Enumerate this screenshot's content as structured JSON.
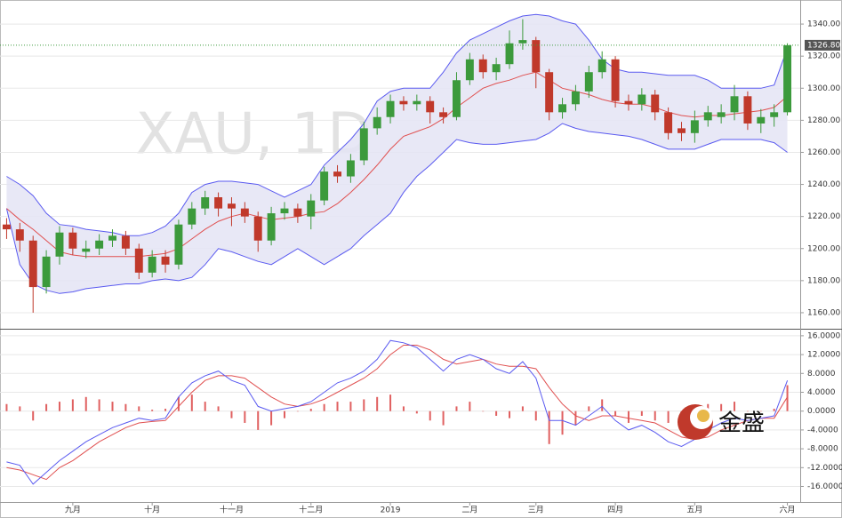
{
  "chart_data": [
    {
      "type": "candlestick",
      "watermark": "XAU, 1D",
      "categories": [
        null,
        null,
        null,
        null,
        null,
        "九月",
        null,
        null,
        null,
        null,
        null,
        "十月",
        null,
        null,
        null,
        null,
        null,
        "十一月",
        null,
        null,
        null,
        null,
        null,
        "十二月",
        null,
        null,
        null,
        null,
        null,
        "2019",
        null,
        null,
        null,
        null,
        null,
        "二月",
        null,
        null,
        null,
        null,
        "三月",
        null,
        null,
        null,
        null,
        null,
        "四月",
        null,
        null,
        null,
        null,
        null,
        "五月",
        null,
        null,
        null,
        null,
        null,
        null,
        "六月"
      ],
      "open": [
        1215,
        1212,
        1205,
        1176,
        1195,
        1210,
        1198,
        1200,
        1205,
        1208,
        1200,
        1185,
        1195,
        1190,
        1215,
        1225,
        1232,
        1228,
        1225,
        1220,
        1205,
        1222,
        1225,
        1220,
        1230,
        1248,
        1245,
        1255,
        1275,
        1282,
        1292,
        1290,
        1292,
        1285,
        1282,
        1305,
        1318,
        1310,
        1315,
        1328,
        1330,
        1310,
        1285,
        1290,
        1298,
        1310,
        1318,
        1292,
        1290,
        1296,
        1285,
        1275,
        1272,
        1280,
        1282,
        1285,
        1295,
        1278,
        1282,
        1285
      ],
      "high": [
        1219,
        1216,
        1208,
        1199,
        1214,
        1213,
        1205,
        1209,
        1212,
        1211,
        1203,
        1199,
        1199,
        1218,
        1229,
        1236,
        1235,
        1232,
        1229,
        1223,
        1226,
        1229,
        1228,
        1234,
        1251,
        1252,
        1259,
        1279,
        1288,
        1296,
        1295,
        1296,
        1295,
        1288,
        1310,
        1322,
        1321,
        1319,
        1336,
        1343,
        1332,
        1312,
        1294,
        1302,
        1314,
        1323,
        1320,
        1296,
        1300,
        1299,
        1288,
        1279,
        1286,
        1289,
        1290,
        1302,
        1298,
        1287,
        1290,
        1328
      ],
      "low": [
        1206,
        1198,
        1160,
        1172,
        1190,
        1196,
        1194,
        1196,
        1201,
        1196,
        1181,
        1182,
        1185,
        1187,
        1212,
        1221,
        1220,
        1214,
        1216,
        1198,
        1202,
        1218,
        1216,
        1212,
        1227,
        1241,
        1241,
        1252,
        1271,
        1278,
        1286,
        1286,
        1278,
        1278,
        1280,
        1302,
        1306,
        1305,
        1312,
        1324,
        1300,
        1280,
        1281,
        1286,
        1294,
        1306,
        1288,
        1286,
        1286,
        1280,
        1268,
        1267,
        1266,
        1276,
        1278,
        1280,
        1274,
        1272,
        1276,
        1283
      ],
      "close": [
        1212,
        1205,
        1176,
        1195,
        1210,
        1200,
        1200,
        1205,
        1208,
        1200,
        1185,
        1195,
        1190,
        1215,
        1225,
        1232,
        1225,
        1225,
        1220,
        1205,
        1222,
        1225,
        1220,
        1230,
        1248,
        1245,
        1255,
        1275,
        1282,
        1292,
        1290,
        1292,
        1285,
        1282,
        1305,
        1318,
        1310,
        1315,
        1328,
        1330,
        1310,
        1285,
        1290,
        1298,
        1310,
        1318,
        1292,
        1290,
        1296,
        1285,
        1272,
        1272,
        1280,
        1285,
        1285,
        1295,
        1278,
        1282,
        1285,
        1326.8
      ],
      "up_color": "#3c9a3c",
      "down_color": "#c0392b",
      "upper": [
        1245,
        1240,
        1233,
        1222,
        1215,
        1214,
        1212,
        1211,
        1210,
        1208,
        1208,
        1210,
        1214,
        1222,
        1235,
        1240,
        1242,
        1242,
        1241,
        1240,
        1236,
        1232,
        1236,
        1240,
        1252,
        1260,
        1268,
        1278,
        1292,
        1298,
        1300,
        1300,
        1300,
        1310,
        1322,
        1330,
        1334,
        1338,
        1342,
        1345,
        1346,
        1345,
        1342,
        1340,
        1330,
        1318,
        1312,
        1310,
        1310,
        1309,
        1308,
        1308,
        1308,
        1305,
        1300,
        1300,
        1300,
        1300,
        1302,
        1325
      ],
      "middle": [
        1225,
        1218,
        1212,
        1205,
        1198,
        1196,
        1195,
        1195,
        1195,
        1195,
        1195,
        1196,
        1197,
        1200,
        1206,
        1212,
        1217,
        1220,
        1222,
        1220,
        1218,
        1219,
        1220,
        1222,
        1223,
        1228,
        1235,
        1243,
        1252,
        1262,
        1270,
        1273,
        1276,
        1281,
        1288,
        1294,
        1300,
        1303,
        1305,
        1308,
        1310,
        1305,
        1300,
        1298,
        1296,
        1293,
        1291,
        1290,
        1290,
        1288,
        1285,
        1283,
        1282,
        1283,
        1283,
        1284,
        1285,
        1286,
        1288,
        1295
      ],
      "lower": [
        1225,
        1190,
        1178,
        1174,
        1172,
        1173,
        1175,
        1176,
        1177,
        1178,
        1178,
        1180,
        1181,
        1180,
        1182,
        1190,
        1200,
        1198,
        1195,
        1192,
        1190,
        1195,
        1200,
        1195,
        1190,
        1195,
        1200,
        1208,
        1215,
        1222,
        1235,
        1245,
        1252,
        1260,
        1268,
        1266,
        1265,
        1265,
        1266,
        1267,
        1268,
        1272,
        1278,
        1275,
        1273,
        1272,
        1271,
        1270,
        1268,
        1265,
        1262,
        1262,
        1262,
        1265,
        1268,
        1268,
        1268,
        1268,
        1266,
        1260
      ],
      "band_color": "#5a5af0",
      "band_fill": "#e4e4f4",
      "middle_color": "#e05050",
      "last_price": {
        "value": 1326.8,
        "label": "1326.80"
      },
      "ylim": [
        1150,
        1355
      ],
      "yticks": [
        {
          "value": 1160,
          "label": "1160.00"
        },
        {
          "value": 1180,
          "label": "1180.00"
        },
        {
          "value": 1200,
          "label": "1200.00"
        },
        {
          "value": 1220,
          "label": "1220.00"
        },
        {
          "value": 1240,
          "label": "1240.00"
        },
        {
          "value": 1260,
          "label": "1260.00"
        },
        {
          "value": 1280,
          "label": "1280.00"
        },
        {
          "value": 1300,
          "label": "1300.00"
        },
        {
          "value": 1320,
          "label": "1320.00"
        },
        {
          "value": 1340,
          "label": "1340.00"
        }
      ],
      "grid": true
    },
    {
      "type": "macd",
      "logo_text": "金盛",
      "macd": [
        -10.8,
        -11.5,
        -15.5,
        -13,
        -10.5,
        -8.5,
        -6.5,
        -5,
        -3.5,
        -2.5,
        -1.5,
        -2,
        -1.5,
        3,
        6,
        7.5,
        8.5,
        6.5,
        5.5,
        1,
        0,
        0.5,
        1,
        2,
        4,
        6,
        7,
        8.5,
        11,
        15,
        14.5,
        13.5,
        11,
        8.5,
        11,
        12,
        11,
        9,
        8,
        10.5,
        7,
        -2,
        -2,
        -3,
        -1,
        1,
        -2,
        -4,
        -3,
        -4.5,
        -6.5,
        -7.5,
        -6,
        -4,
        -2.5,
        -1.5,
        -2,
        -1.5,
        -1,
        6.5
      ],
      "signal": [
        -12,
        -12.5,
        -13.5,
        -14.5,
        -12,
        -10.5,
        -8.5,
        -6.5,
        -5,
        -3.5,
        -2.5,
        -2.2,
        -2,
        1,
        4,
        6.5,
        7.5,
        7.5,
        7,
        5,
        3,
        1.5,
        1,
        1.5,
        2.5,
        4,
        5.5,
        7,
        9,
        12,
        14,
        14,
        13,
        11,
        10,
        10.5,
        11,
        10,
        9.5,
        9.5,
        9,
        5,
        1.5,
        -1,
        -2,
        -1,
        -1,
        -1.5,
        -2,
        -2.5,
        -4,
        -5.5,
        -6,
        -5.5,
        -4,
        -3,
        -2,
        -1.5,
        -1.5,
        3
      ],
      "histogram": [
        1.5,
        1,
        -2,
        1.5,
        2,
        2.5,
        3,
        2.5,
        2,
        1.5,
        1,
        0.3,
        0.5,
        3,
        3.5,
        2,
        1,
        -1.5,
        -2.5,
        -4,
        -3,
        -1.5,
        0,
        0.5,
        1.5,
        2,
        2,
        2.5,
        3,
        3.5,
        1,
        -0.5,
        -2,
        -3,
        1,
        2,
        0,
        -1,
        -1.5,
        1,
        -2,
        -7,
        -5,
        -3,
        1,
        2.5,
        -1,
        -2.5,
        -1,
        -2,
        -2.5,
        -2,
        0,
        1.5,
        1.5,
        2,
        0,
        0,
        0.5,
        5.5
      ],
      "macd_color": "#5a5af0",
      "signal_color": "#e05050",
      "histogram_color": "#e06060",
      "ylim": [
        -19.3,
        17.3
      ],
      "yticks": [
        {
          "value": 16,
          "label": "16.0000"
        },
        {
          "value": 12,
          "label": "12.0000"
        },
        {
          "value": 8,
          "label": "8.0000"
        },
        {
          "value": 4,
          "label": "4.0000"
        },
        {
          "value": 0,
          "label": "0.0000"
        },
        {
          "value": -4,
          "label": "-4.0000"
        },
        {
          "value": -8,
          "label": "-8.0000"
        },
        {
          "value": -12,
          "label": "-12.0000"
        },
        {
          "value": -16,
          "label": "-16.0000"
        }
      ],
      "grid": true
    }
  ]
}
